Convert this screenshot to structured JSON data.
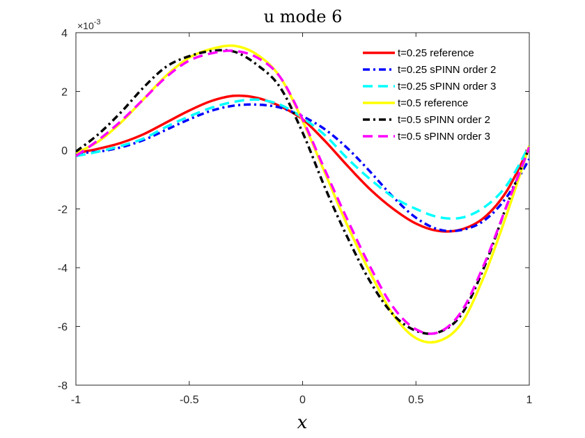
{
  "chart_data": {
    "type": "line",
    "title": "u mode 6",
    "xlabel": "x",
    "ylabel": "",
    "xlim": [
      -1,
      1
    ],
    "ylim": [
      -8,
      4
    ],
    "y_scale_note": "×10^-3",
    "y_exponent_label": {
      "base": "×10",
      "exponent": "-3"
    },
    "xticks": [
      -1,
      -0.5,
      0,
      0.5,
      1
    ],
    "xtick_labels": [
      "-1",
      "-0.5",
      "0",
      "0.5",
      "1"
    ],
    "yticks": [
      -8,
      -6,
      -4,
      -2,
      0,
      2,
      4
    ],
    "ytick_labels": [
      "-8",
      "-6",
      "-4",
      "-2",
      "0",
      "2",
      "4"
    ],
    "legend_position": "top-right",
    "x": [
      -1,
      -0.9,
      -0.8,
      -0.7,
      -0.6,
      -0.5,
      -0.4,
      -0.3,
      -0.2,
      -0.1,
      0,
      0.1,
      0.2,
      0.3,
      0.4,
      0.5,
      0.6,
      0.7,
      0.8,
      0.9,
      1
    ],
    "series": [
      {
        "name": "t=0.25 reference",
        "color": "#ff0000",
        "dash": "solid",
        "values": [
          -0.1,
          0.05,
          0.25,
          0.55,
          0.95,
          1.35,
          1.68,
          1.85,
          1.78,
          1.5,
          1.05,
          0.3,
          -0.55,
          -1.35,
          -2.0,
          -2.5,
          -2.75,
          -2.7,
          -2.3,
          -1.4,
          0.1
        ]
      },
      {
        "name": "t=0.25 sPINN order 2",
        "color": "#0000ff",
        "dash": "dashdot",
        "values": [
          -0.1,
          -0.05,
          0.1,
          0.35,
          0.7,
          1.05,
          1.35,
          1.52,
          1.55,
          1.45,
          1.15,
          0.7,
          0.05,
          -0.75,
          -1.6,
          -2.3,
          -2.7,
          -2.72,
          -2.4,
          -1.6,
          -0.3
        ]
      },
      {
        "name": "t=0.25 sPINN order 3",
        "color": "#00ffff",
        "dash": "dashed",
        "values": [
          -0.2,
          -0.05,
          0.15,
          0.4,
          0.8,
          1.15,
          1.45,
          1.65,
          1.72,
          1.55,
          1.1,
          0.5,
          -0.3,
          -1.0,
          -1.6,
          -2.0,
          -2.28,
          -2.3,
          -1.95,
          -1.2,
          0.15
        ]
      },
      {
        "name": "t=0.5 reference",
        "color": "#ffff00",
        "dash": "solid",
        "values": [
          -0.1,
          0.3,
          0.95,
          1.75,
          2.55,
          3.15,
          3.45,
          3.55,
          3.25,
          2.5,
          1.0,
          -0.8,
          -2.6,
          -4.2,
          -5.6,
          -6.4,
          -6.5,
          -5.9,
          -4.3,
          -2.2,
          0.15
        ]
      },
      {
        "name": "t=0.5 sPINN order 2",
        "color": "#000000",
        "dash": "dashdot",
        "values": [
          -0.05,
          0.55,
          1.3,
          2.15,
          2.85,
          3.2,
          3.38,
          3.35,
          2.9,
          2.15,
          0.6,
          -1.3,
          -3.0,
          -4.5,
          -5.6,
          -6.15,
          -6.2,
          -5.6,
          -4.0,
          -1.9,
          0.1
        ]
      },
      {
        "name": "t=0.5 sPINN order 3",
        "color": "#ff00ff",
        "dash": "dashed",
        "values": [
          -0.2,
          0.35,
          1.0,
          1.75,
          2.5,
          3.05,
          3.3,
          3.38,
          3.15,
          2.5,
          1.05,
          -0.7,
          -2.4,
          -4.0,
          -5.35,
          -6.1,
          -6.2,
          -5.5,
          -3.9,
          -1.9,
          0.1
        ]
      }
    ]
  }
}
